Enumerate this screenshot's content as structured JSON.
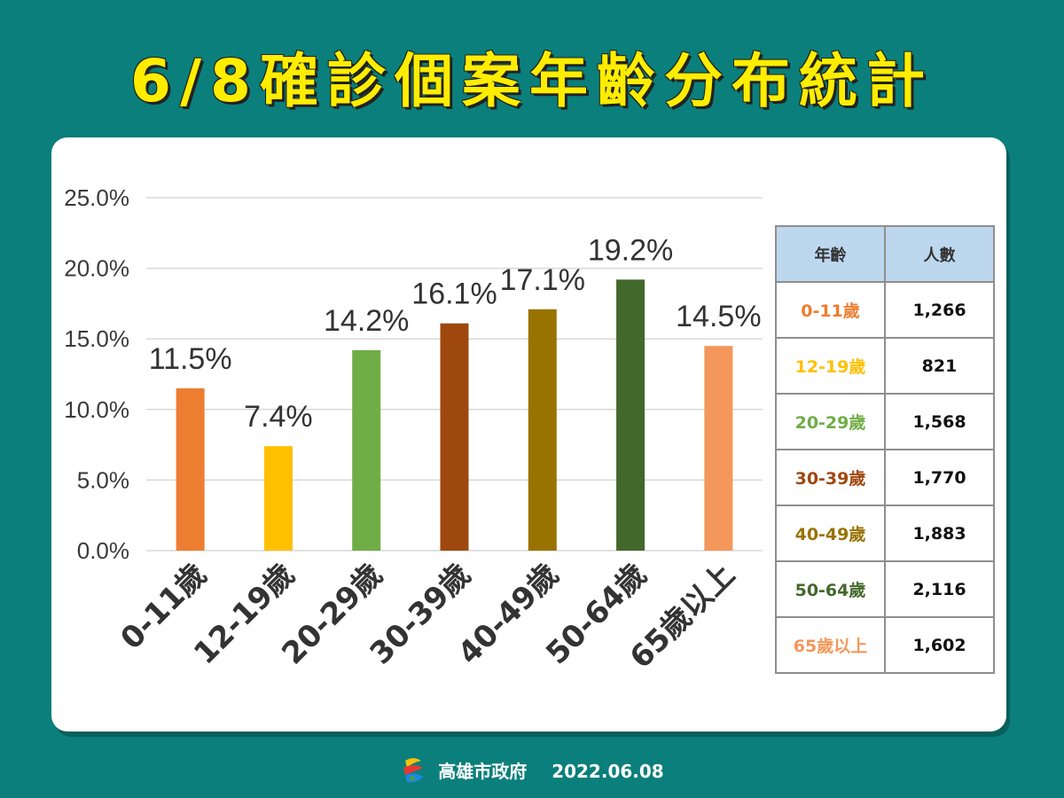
{
  "title": "6/8確診個案年齡分布統計",
  "footer": {
    "org": "高雄市政府",
    "date": "2022.06.08"
  },
  "table": {
    "headers": [
      "年齡",
      "人數"
    ],
    "rows": [
      {
        "age": "0-11歲",
        "count": "1,266",
        "color": "#ed7d31"
      },
      {
        "age": "12-19歲",
        "count": "821",
        "color": "#ffc000"
      },
      {
        "age": "20-29歲",
        "count": "1,568",
        "color": "#70ad47"
      },
      {
        "age": "30-39歲",
        "count": "1,770",
        "color": "#9e480e"
      },
      {
        "age": "40-49歲",
        "count": "1,883",
        "color": "#997300"
      },
      {
        "age": "50-64歲",
        "count": "2,116",
        "color": "#43682b"
      },
      {
        "age": "65歲以上",
        "count": "1,602",
        "color": "#f4975a"
      }
    ]
  },
  "chart_data": {
    "type": "bar",
    "categories": [
      "0-11歲",
      "12-19歲",
      "20-29歲",
      "30-39歲",
      "40-49歲",
      "50-64歲",
      "65歲以上"
    ],
    "values": [
      11.5,
      7.4,
      14.2,
      16.1,
      17.1,
      19.2,
      14.5
    ],
    "value_labels": [
      "11.5%",
      "7.4%",
      "14.2%",
      "16.1%",
      "17.1%",
      "19.2%",
      "14.5%"
    ],
    "colors": [
      "#ed7d31",
      "#ffc000",
      "#70ad47",
      "#9e480e",
      "#997300",
      "#43682b",
      "#f4975a"
    ],
    "yticks": [
      "0.0%",
      "5.0%",
      "10.0%",
      "15.0%",
      "20.0%",
      "25.0%"
    ],
    "ylim": [
      0,
      25
    ],
    "grid": true
  }
}
